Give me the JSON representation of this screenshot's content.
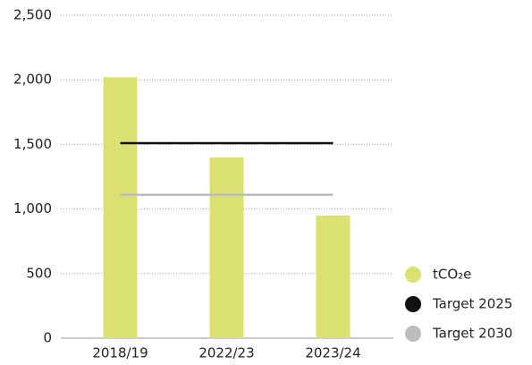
{
  "chart_data": {
    "type": "bar",
    "categories": [
      "2018/19",
      "2022/23",
      "2023/24"
    ],
    "series": [
      {
        "name": "tCO₂e",
        "color": "#dbe170",
        "values": [
          2020,
          1400,
          950
        ]
      }
    ],
    "targets": [
      {
        "name": "Target 2025",
        "color": "#111111",
        "value": 1510
      },
      {
        "name": "Target 2030",
        "color": "#bdbdbd",
        "value": 1110
      }
    ],
    "ylim": [
      0,
      2500
    ],
    "yticks": [
      0,
      500,
      {
        "value": 1000,
        "label": "1,000"
      },
      {
        "value": 1500,
        "label": "1,500"
      },
      {
        "value": 2000,
        "label": "2,000"
      },
      {
        "value": 2500,
        "label": "2,500"
      }
    ],
    "grid": true,
    "legend": "bottom-right"
  }
}
